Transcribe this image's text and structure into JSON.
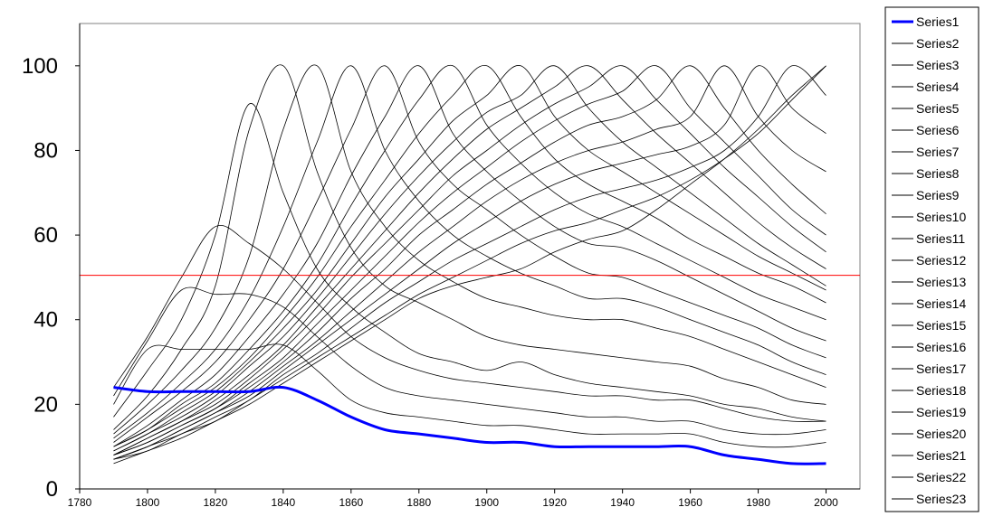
{
  "chart_data": {
    "type": "line",
    "title": "",
    "xlabel": "",
    "ylabel": "",
    "xlim": [
      1780,
      2010
    ],
    "ylim": [
      0,
      110
    ],
    "x_ticks": [
      "1780",
      "1800",
      "1820",
      "1840",
      "1860",
      "1880",
      "1900",
      "1920",
      "1940",
      "1960",
      "1980",
      "2000"
    ],
    "y_ticks": [
      "0",
      "20",
      "40",
      "60",
      "80",
      "100"
    ],
    "grid": false,
    "legend_position": "right",
    "reference_line": {
      "y": 50.5,
      "color": "#ff0000"
    },
    "x": [
      1790,
      1800,
      1810,
      1820,
      1830,
      1840,
      1850,
      1860,
      1870,
      1880,
      1890,
      1900,
      1910,
      1920,
      1930,
      1940,
      1950,
      1960,
      1970,
      1980,
      1990,
      2000
    ],
    "series": [
      {
        "name": "Series1",
        "color": "#0000ff",
        "width": 3,
        "values": [
          24,
          23,
          23,
          23,
          23,
          24,
          21,
          17,
          14,
          13,
          12,
          11,
          11,
          10,
          10,
          10,
          10,
          10,
          8,
          7,
          6,
          6
        ]
      },
      {
        "name": "Series2",
        "values": [
          20,
          33,
          33,
          33,
          33,
          34,
          28,
          21,
          18,
          17,
          16,
          15,
          15,
          14,
          13,
          13,
          13,
          13,
          11,
          10,
          10,
          11
        ]
      },
      {
        "name": "Series3",
        "values": [
          22,
          35,
          47,
          46,
          46,
          43,
          36,
          29,
          24,
          22,
          21,
          20,
          19,
          18,
          17,
          17,
          16,
          16,
          14,
          13,
          13,
          14
        ]
      },
      {
        "name": "Series4",
        "values": [
          24,
          36,
          50,
          62,
          58,
          52,
          44,
          36,
          31,
          28,
          26,
          25,
          24,
          23,
          22,
          22,
          21,
          21,
          19,
          17,
          16,
          16
        ]
      },
      {
        "name": "Series5",
        "values": [
          17,
          28,
          40,
          60,
          91,
          70,
          52,
          43,
          37,
          32,
          30,
          28,
          30,
          27,
          25,
          24,
          23,
          22,
          20,
          19,
          17,
          16
        ]
      },
      {
        "name": "Series6",
        "values": [
          14,
          22,
          33,
          48,
          85,
          100,
          75,
          57,
          48,
          44,
          40,
          36,
          34,
          33,
          32,
          31,
          30,
          29,
          26,
          24,
          21,
          20
        ]
      },
      {
        "name": "Series7",
        "values": [
          13,
          20,
          28,
          38,
          55,
          85,
          100,
          75,
          62,
          54,
          49,
          45,
          43,
          41,
          40,
          40,
          38,
          36,
          33,
          30,
          27,
          24
        ]
      },
      {
        "name": "Series8",
        "values": [
          12,
          18,
          25,
          33,
          45,
          62,
          82,
          100,
          80,
          68,
          60,
          55,
          51,
          48,
          45,
          45,
          43,
          40,
          37,
          34,
          30,
          27
        ]
      },
      {
        "name": "Series9",
        "values": [
          11,
          17,
          23,
          30,
          40,
          52,
          68,
          85,
          100,
          82,
          72,
          66,
          60,
          55,
          51,
          50,
          47,
          44,
          41,
          38,
          34,
          31
        ]
      },
      {
        "name": "Series10",
        "values": [
          10,
          15,
          21,
          27,
          36,
          46,
          58,
          74,
          88,
          100,
          84,
          75,
          68,
          62,
          58,
          57,
          54,
          50,
          46,
          42,
          38,
          35
        ]
      },
      {
        "name": "Series11",
        "values": [
          10,
          14,
          20,
          25,
          33,
          42,
          53,
          67,
          80,
          92,
          100,
          86,
          77,
          70,
          65,
          62,
          58,
          54,
          50,
          46,
          43,
          40
        ]
      },
      {
        "name": "Series12",
        "values": [
          10,
          14,
          19,
          24,
          31,
          40,
          50,
          62,
          73,
          84,
          93,
          100,
          88,
          78,
          72,
          68,
          64,
          59,
          55,
          51,
          48,
          44
        ]
      },
      {
        "name": "Series13",
        "values": [
          9,
          13,
          18,
          23,
          30,
          38,
          47,
          58,
          69,
          78,
          87,
          93,
          100,
          88,
          80,
          75,
          70,
          65,
          60,
          55,
          51,
          47
        ]
      },
      {
        "name": "Series14",
        "values": [
          9,
          13,
          17,
          22,
          29,
          36,
          45,
          55,
          65,
          74,
          82,
          89,
          93,
          100,
          90,
          82,
          76,
          70,
          64,
          58,
          53,
          48
        ]
      },
      {
        "name": "Series15",
        "values": [
          8,
          12,
          16,
          21,
          27,
          34,
          43,
          52,
          61,
          70,
          78,
          85,
          90,
          95,
          100,
          92,
          84,
          77,
          70,
          63,
          57,
          52
        ]
      },
      {
        "name": "Series16",
        "values": [
          8,
          12,
          16,
          20,
          26,
          33,
          41,
          50,
          58,
          66,
          74,
          80,
          86,
          91,
          95,
          100,
          92,
          84,
          76,
          69,
          62,
          56
        ]
      },
      {
        "name": "Series17",
        "values": [
          8,
          11,
          15,
          19,
          25,
          31,
          39,
          47,
          55,
          63,
          70,
          76,
          82,
          87,
          91,
          94,
          100,
          90,
          82,
          74,
          66,
          60
        ]
      },
      {
        "name": "Series18",
        "values": [
          8,
          11,
          15,
          19,
          24,
          30,
          37,
          45,
          52,
          60,
          66,
          72,
          77,
          82,
          86,
          88,
          92,
          100,
          90,
          80,
          72,
          65
        ]
      },
      {
        "name": "Series19",
        "values": [
          7,
          10,
          14,
          18,
          23,
          29,
          35,
          42,
          49,
          56,
          62,
          68,
          73,
          77,
          80,
          82,
          85,
          88,
          100,
          88,
          80,
          75
        ]
      },
      {
        "name": "Series20",
        "values": [
          7,
          10,
          14,
          18,
          22,
          28,
          34,
          40,
          46,
          52,
          58,
          63,
          68,
          72,
          75,
          77,
          79,
          81,
          86,
          100,
          90,
          84
        ]
      },
      {
        "name": "Series21",
        "values": [
          7,
          10,
          13,
          17,
          21,
          27,
          32,
          38,
          44,
          49,
          54,
          58,
          62,
          66,
          69,
          71,
          73,
          76,
          80,
          88,
          100,
          93
        ]
      },
      {
        "name": "Series22",
        "values": [
          7,
          9,
          13,
          16,
          21,
          26,
          31,
          36,
          41,
          46,
          50,
          54,
          58,
          61,
          63,
          66,
          69,
          73,
          78,
          84,
          92,
          100
        ]
      },
      {
        "name": "Series23",
        "values": [
          6,
          9,
          12,
          16,
          20,
          25,
          30,
          35,
          40,
          45,
          48,
          50,
          52,
          56,
          59,
          61,
          66,
          72,
          78,
          85,
          93,
          100
        ]
      }
    ]
  }
}
